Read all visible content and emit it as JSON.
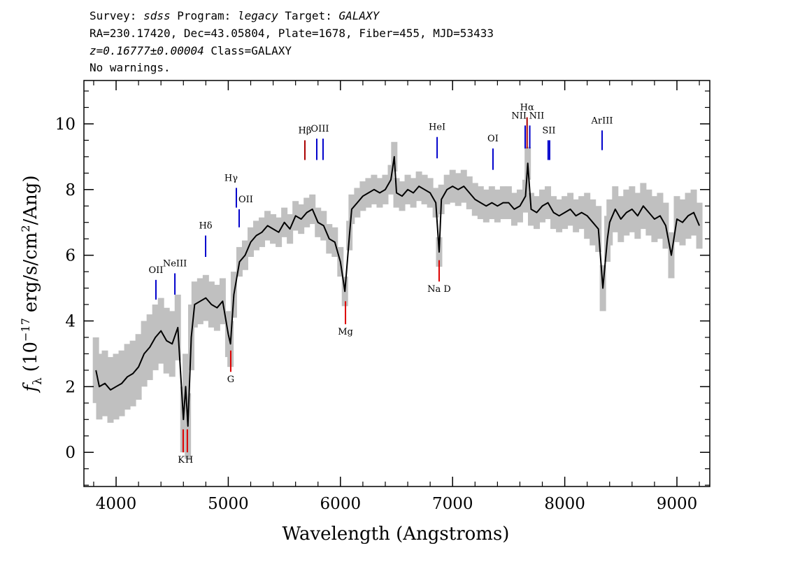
{
  "header": {
    "line1": [
      "Survey:",
      "sdss",
      "Program:",
      "legacy",
      "Target:",
      "GALAXY"
    ],
    "line2": "RA=230.17420, Dec=43.05804, Plate=1678, Fiber=455, MJD=53433",
    "line3": [
      "z=0.16777±0.00004",
      "Class=GALAXY"
    ],
    "line4": "No warnings."
  },
  "chart_data": {
    "type": "line",
    "xlabel": "Wavelength (Angstroms)",
    "ylabel": [
      "f",
      "λ",
      "(10",
      "−17",
      "erg/s/cm",
      "2",
      "/Ang)"
    ],
    "color": "#000000",
    "error_color": "#c0c0c0",
    "x": [
      3820,
      3850,
      3900,
      3950,
      4000,
      4050,
      4100,
      4150,
      4200,
      4250,
      4300,
      4350,
      4400,
      4450,
      4500,
      4550,
      4600,
      4620,
      4640,
      4670,
      4700,
      4750,
      4800,
      4850,
      4900,
      4950,
      5000,
      5020,
      5050,
      5100,
      5150,
      5200,
      5250,
      5300,
      5350,
      5400,
      5450,
      5500,
      5550,
      5600,
      5650,
      5700,
      5750,
      5800,
      5850,
      5900,
      5950,
      6000,
      6040,
      6080,
      6100,
      6150,
      6200,
      6250,
      6300,
      6350,
      6400,
      6450,
      6480,
      6500,
      6550,
      6600,
      6650,
      6700,
      6750,
      6800,
      6850,
      6880,
      6900,
      6950,
      7000,
      7050,
      7100,
      7150,
      7200,
      7250,
      7300,
      7350,
      7400,
      7450,
      7500,
      7550,
      7600,
      7650,
      7670,
      7700,
      7750,
      7800,
      7850,
      7900,
      7950,
      8000,
      8050,
      8100,
      8150,
      8200,
      8250,
      8300,
      8340,
      8380,
      8400,
      8450,
      8500,
      8550,
      8600,
      8650,
      8700,
      8750,
      8800,
      8850,
      8900,
      8950,
      9000,
      9050,
      9100,
      9150,
      9200
    ],
    "values": [
      2.5,
      2.0,
      2.1,
      1.9,
      2.0,
      2.1,
      2.3,
      2.4,
      2.6,
      3.0,
      3.2,
      3.5,
      3.7,
      3.4,
      3.3,
      3.8,
      1.0,
      2.0,
      0.8,
      3.5,
      4.5,
      4.6,
      4.7,
      4.5,
      4.4,
      4.6,
      3.6,
      3.3,
      4.8,
      5.8,
      6.0,
      6.4,
      6.6,
      6.7,
      6.9,
      6.8,
      6.7,
      7.0,
      6.8,
      7.2,
      7.1,
      7.3,
      7.4,
      7.0,
      6.9,
      6.5,
      6.4,
      5.8,
      4.9,
      6.6,
      7.4,
      7.6,
      7.8,
      7.9,
      8.0,
      7.9,
      8.0,
      8.3,
      9.0,
      7.9,
      7.8,
      8.0,
      7.9,
      8.1,
      8.0,
      7.9,
      7.6,
      6.1,
      7.7,
      8.0,
      8.1,
      8.0,
      8.1,
      7.9,
      7.7,
      7.6,
      7.5,
      7.6,
      7.5,
      7.6,
      7.6,
      7.4,
      7.5,
      7.8,
      8.8,
      7.4,
      7.3,
      7.5,
      7.6,
      7.3,
      7.2,
      7.3,
      7.4,
      7.2,
      7.3,
      7.2,
      7.0,
      6.8,
      5.0,
      6.5,
      7.0,
      7.4,
      7.1,
      7.3,
      7.4,
      7.2,
      7.5,
      7.3,
      7.1,
      7.2,
      6.9,
      6.0,
      7.1,
      7.0,
      7.2,
      7.3,
      6.9
    ],
    "errors": [
      1.0,
      1.0,
      1.0,
      1.0,
      1.0,
      1.0,
      1.0,
      1.0,
      1.0,
      1.0,
      1.0,
      1.0,
      1.0,
      1.0,
      1.0,
      1.0,
      1.0,
      1.0,
      1.0,
      1.0,
      0.7,
      0.7,
      0.7,
      0.7,
      0.7,
      0.7,
      0.7,
      0.7,
      0.7,
      0.45,
      0.45,
      0.45,
      0.45,
      0.45,
      0.45,
      0.45,
      0.45,
      0.45,
      0.45,
      0.45,
      0.45,
      0.45,
      0.45,
      0.45,
      0.45,
      0.45,
      0.45,
      0.45,
      0.45,
      0.45,
      0.45,
      0.45,
      0.45,
      0.45,
      0.45,
      0.45,
      0.45,
      0.45,
      0.45,
      0.45,
      0.45,
      0.45,
      0.45,
      0.45,
      0.45,
      0.45,
      0.45,
      0.45,
      0.45,
      0.45,
      0.5,
      0.5,
      0.5,
      0.5,
      0.5,
      0.5,
      0.5,
      0.5,
      0.5,
      0.5,
      0.5,
      0.5,
      0.5,
      0.5,
      0.5,
      0.5,
      0.5,
      0.5,
      0.5,
      0.5,
      0.5,
      0.5,
      0.5,
      0.5,
      0.5,
      0.7,
      0.7,
      0.7,
      0.7,
      0.7,
      0.7,
      0.7,
      0.7,
      0.7,
      0.7,
      0.7,
      0.7,
      0.7,
      0.7,
      0.7,
      0.7,
      0.7,
      0.7,
      0.7,
      0.7,
      0.7,
      0.7
    ],
    "lines": [
      {
        "name": "OII",
        "kind": "emission",
        "color": "#0000cc",
        "wavelengths": [
          4355
        ],
        "range": [
          4.65,
          5.25
        ]
      },
      {
        "name": "NeIII",
        "kind": "emission",
        "color": "#0000cc",
        "wavelengths": [
          4524
        ],
        "range": [
          4.8,
          5.45
        ]
      },
      {
        "name": "Hδ",
        "kind": "emission",
        "color": "#0000cc",
        "wavelengths": [
          4798
        ],
        "range": [
          5.95,
          6.6
        ]
      },
      {
        "name": "Hγ",
        "kind": "emission",
        "color": "#0000cc",
        "wavelengths": [
          5072
        ],
        "range": [
          7.45,
          8.05
        ]
      },
      {
        "name": "OII",
        "kind": "emission",
        "color": "#0000cc",
        "wavelengths": [
          5097
        ],
        "range": [
          6.85,
          7.4
        ]
      },
      {
        "name": "Hβ",
        "kind": "emission",
        "color": "#aa0000",
        "wavelengths": [
          5683
        ],
        "range": [
          8.9,
          9.5
        ]
      },
      {
        "name": "OIII",
        "kind": "emission",
        "color": "#0000cc",
        "wavelengths": [
          5789,
          5845
        ],
        "range": [
          8.9,
          9.55
        ]
      },
      {
        "name": "HeI",
        "kind": "emission",
        "color": "#0000cc",
        "wavelengths": [
          6862
        ],
        "range": [
          8.95,
          9.6
        ]
      },
      {
        "name": "OI",
        "kind": "emission",
        "color": "#0000cc",
        "wavelengths": [
          7360
        ],
        "range": [
          8.6,
          9.25
        ]
      },
      {
        "name": "NII",
        "kind": "emission",
        "color": "#0000cc",
        "wavelengths": [
          7647
        ],
        "range": [
          9.25,
          9.95
        ]
      },
      {
        "name": "Hα",
        "kind": "emission",
        "color": "#aa0000",
        "wavelengths": [
          7664
        ],
        "range": [
          9.25,
          10.2
        ]
      },
      {
        "name": "NII",
        "kind": "emission",
        "color": "#0000cc",
        "wavelengths": [
          7688
        ],
        "range": [
          9.25,
          9.95
        ]
      },
      {
        "name": "SII",
        "kind": "emission",
        "color": "#0000cc",
        "wavelengths": [
          7852,
          7865
        ],
        "range": [
          8.9,
          9.5
        ]
      },
      {
        "name": "ArIII",
        "kind": "emission",
        "color": "#0000cc",
        "wavelengths": [
          8333
        ],
        "range": [
          9.2,
          9.8
        ]
      },
      {
        "name": "K",
        "kind": "absorption",
        "color": "#dd0000",
        "wavelengths": [
          4598
        ],
        "range": [
          0.0,
          0.7
        ]
      },
      {
        "name": "H",
        "kind": "absorption",
        "color": "#dd0000",
        "wavelengths": [
          4635
        ],
        "range": [
          0.0,
          0.7
        ]
      },
      {
        "name": "G",
        "kind": "absorption",
        "color": "#dd0000",
        "wavelengths": [
          5022
        ],
        "range": [
          2.45,
          3.1
        ]
      },
      {
        "name": "Mg",
        "kind": "absorption",
        "color": "#dd0000",
        "wavelengths": [
          6045
        ],
        "range": [
          3.9,
          4.6
        ]
      },
      {
        "name": "Na D",
        "kind": "absorption",
        "color": "#dd0000",
        "wavelengths": [
          6880
        ],
        "range": [
          5.2,
          5.85
        ]
      }
    ],
    "xlim": [
      3713,
      9293
    ],
    "ylim": [
      -1.04,
      11.32
    ],
    "xticks": [
      4000,
      5000,
      6000,
      7000,
      8000,
      9000
    ],
    "xticks_minor": [
      3800,
      4200,
      4400,
      4600,
      4800,
      5200,
      5400,
      5600,
      5800,
      6200,
      6400,
      6600,
      6800,
      7200,
      7400,
      7600,
      7800,
      8200,
      8400,
      8600,
      8800,
      9200
    ],
    "yticks": [
      0,
      2,
      4,
      6,
      8,
      10
    ],
    "yticks_minor": [
      -1,
      -0.5,
      0.5,
      1,
      1.5,
      2.5,
      3,
      3.5,
      4.5,
      5,
      5.5,
      6.5,
      7,
      7.5,
      8.5,
      9,
      9.5,
      10.5,
      11
    ]
  }
}
